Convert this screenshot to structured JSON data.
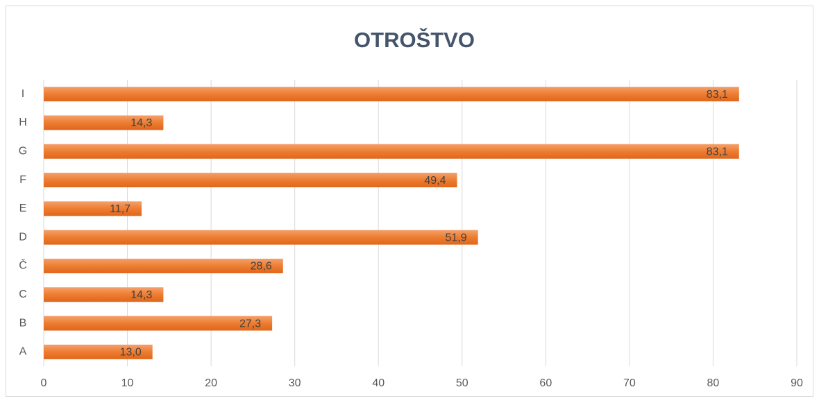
{
  "chart_data": {
    "type": "bar",
    "orientation": "horizontal",
    "title": "OTROŠTVO",
    "categories": [
      "A",
      "B",
      "C",
      "Č",
      "D",
      "E",
      "F",
      "G",
      "H",
      "I"
    ],
    "values": [
      13.0,
      27.3,
      14.3,
      28.6,
      51.9,
      11.7,
      49.4,
      83.1,
      14.3,
      83.1
    ],
    "value_labels": [
      "13,0",
      "27,3",
      "14,3",
      "28,6",
      "51,9",
      "11,7",
      "49,4",
      "83,1",
      "14,3",
      "83,1"
    ],
    "color": "#ed7d31",
    "xlim": [
      0,
      90
    ],
    "xticks": [
      0,
      10,
      20,
      30,
      40,
      50,
      60,
      70,
      80,
      90
    ],
    "grid": true
  }
}
